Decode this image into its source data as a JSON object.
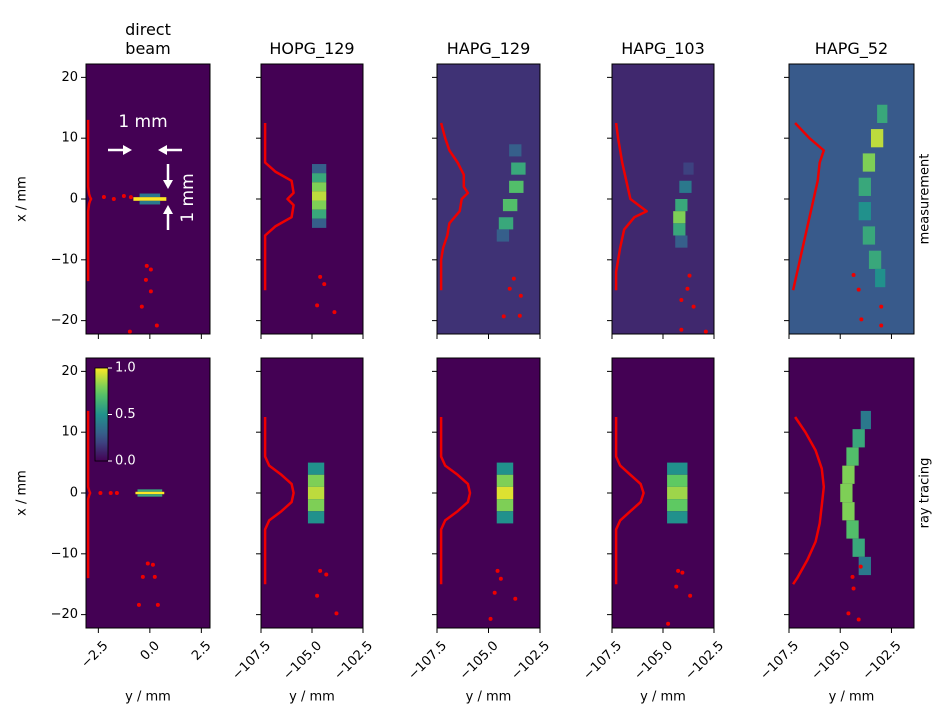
{
  "chart_data": [
    {
      "type": "heatmap",
      "title": "direct beam",
      "ylabel": "x / mm",
      "colormap": "viridis",
      "background": 0,
      "xlim": [
        -3.1,
        2.92
      ],
      "xticks": [
        -2.5,
        0,
        2.5
      ],
      "ylim": [
        -22.2,
        22.2
      ],
      "yticks": [
        {
          "value": -20,
          "label": "−20"
        },
        {
          "value": -10,
          "label": "−10"
        },
        {
          "value": 0,
          "label": "0"
        },
        {
          "value": 10,
          "label": "10"
        },
        {
          "value": 20,
          "label": "20"
        }
      ],
      "annotations": [
        "1 mm",
        "1 mm"
      ],
      "spot": {
        "y": [
          0.6,
          0,
          -0.6
        ],
        "x0": [
          -0.5,
          -0.8,
          -0.5
        ],
        "x1": [
          0.5,
          0.8,
          0.5
        ],
        "values": [
          0.4,
          1,
          0.4
        ]
      },
      "profile": {
        "color": "#ee0000",
        "x": [
          -3.0,
          -3.0,
          -2.95,
          -2.9,
          -2.85,
          -2.9,
          -2.95,
          -3.0,
          -3.0
        ],
        "y": [
          13,
          2,
          0.8,
          0.3,
          0,
          -0.3,
          -0.8,
          -2,
          -13.5
        ]
      },
      "points": {
        "color": "#ee0000",
        "x": [
          -2.23,
          -1.75,
          -1.26,
          -0.92,
          -0.15,
          0.05,
          -0.19,
          0.05,
          -0.39,
          0.34,
          -0.97
        ],
        "y": [
          0.33,
          0,
          0.5,
          0.3,
          -11.0,
          -11.6,
          -13.3,
          -15.2,
          -17.7,
          -20.8,
          -21.8
        ]
      }
    },
    {
      "type": "heatmap",
      "title": "HOPG_129",
      "colormap": "viridis",
      "background": 0,
      "xlim": [
        -107.5,
        -102.5
      ],
      "xticks": [
        -107.5,
        -105,
        -102.5
      ],
      "ylim": [
        -22.2,
        22.2
      ],
      "yticks": [
        -20,
        -10,
        0,
        10,
        20
      ],
      "spot": {
        "y": [
          5,
          3.5,
          2,
          0.5,
          -1,
          -2.5,
          -4
        ],
        "x0": [
          -105.0,
          -105.0,
          -105.0,
          -105.0,
          -105.0,
          -105.0,
          -105.0
        ],
        "x1": [
          -104.3,
          -104.3,
          -104.3,
          -104.3,
          -104.3,
          -104.3,
          -104.3
        ],
        "values": [
          0.3,
          0.6,
          0.8,
          0.9,
          0.8,
          0.6,
          0.3
        ]
      },
      "profile": {
        "color": "#ee0000",
        "x": [
          -107.3,
          -107.3,
          -106.8,
          -106.0,
          -105.9,
          -106.2,
          -105.9,
          -106.0,
          -106.8,
          -107.3,
          -107.3
        ],
        "y": [
          12.5,
          6,
          4.5,
          3,
          1,
          0,
          -1,
          -3,
          -4.5,
          -6,
          -15
        ]
      },
      "points": {
        "color": "#ee0000",
        "x": [
          -104.6,
          -104.4,
          -104.75,
          -103.9
        ],
        "y": [
          -12.8,
          -14.0,
          -17.5,
          -18.6
        ]
      }
    },
    {
      "type": "heatmap",
      "title": "HAPG_129",
      "colormap": "viridis",
      "background": 0.15,
      "xlim": [
        -107.5,
        -102.5
      ],
      "xticks": [
        -107.5,
        -105,
        -102.5
      ],
      "ylim": [
        -22.2,
        22.2
      ],
      "yticks": [
        -20,
        -10,
        0,
        10,
        20
      ],
      "spot": {
        "y": [
          8,
          5,
          2,
          -1,
          -4,
          -6
        ],
        "x0": [
          -104.0,
          -103.9,
          -104.0,
          -104.3,
          -104.5,
          -104.6
        ],
        "x1": [
          -103.4,
          -103.2,
          -103.3,
          -103.6,
          -103.8,
          -104.0
        ],
        "values": [
          0.3,
          0.6,
          0.7,
          0.7,
          0.6,
          0.3
        ]
      },
      "profile": {
        "color": "#ee0000",
        "x": [
          -107.3,
          -107.1,
          -106.9,
          -106.5,
          -106.2,
          -106.2,
          -106.0,
          -106.3,
          -106.4,
          -106.9,
          -107.0,
          -107.2,
          -107.3,
          -107.3
        ],
        "y": [
          12.5,
          10,
          8,
          6,
          4,
          2,
          1,
          0,
          -2,
          -4,
          -6,
          -8,
          -10,
          -15
        ]
      },
      "points": {
        "color": "#ee0000",
        "x": [
          -103.77,
          -103.97,
          -103.43,
          -104.26,
          -103.48
        ],
        "y": [
          -13.1,
          -14.75,
          -15.9,
          -19.3,
          -19.2
        ]
      }
    },
    {
      "type": "heatmap",
      "title": "HAPG_103",
      "colormap": "viridis",
      "background": 0.12,
      "xlim": [
        -107.5,
        -102.5
      ],
      "xticks": [
        -107.5,
        -105,
        -102.5
      ],
      "ylim": [
        -22.2,
        22.2
      ],
      "yticks": [
        -20,
        -10,
        0,
        10,
        20
      ],
      "spot": {
        "y": [
          5,
          2,
          -1,
          -3,
          -5,
          -7
        ],
        "x0": [
          -104.0,
          -104.2,
          -104.4,
          -104.5,
          -104.5,
          -104.4
        ],
        "x1": [
          -103.5,
          -103.6,
          -103.8,
          -103.9,
          -103.9,
          -103.8
        ],
        "values": [
          0.2,
          0.4,
          0.6,
          0.8,
          0.6,
          0.3
        ]
      },
      "profile": {
        "color": "#ee0000",
        "x": [
          -107.3,
          -107.2,
          -107.0,
          -106.8,
          -106.6,
          -106.2,
          -105.8,
          -106.4,
          -106.9,
          -107.1,
          -107.3,
          -107.3
        ],
        "y": [
          12.5,
          10,
          6,
          3,
          0,
          -1,
          -2,
          -3,
          -5,
          -8,
          -12,
          -15
        ]
      },
      "points": {
        "color": "#ee0000",
        "x": [
          -103.7,
          -103.8,
          -104.1,
          -103.5,
          -104.1,
          -102.9
        ],
        "y": [
          -12.6,
          -14.75,
          -16.6,
          -17.7,
          -21.5,
          -21.8
        ]
      }
    },
    {
      "type": "heatmap",
      "title": "HAPG_52",
      "row_label": "measurement",
      "colormap": "viridis",
      "background": 0.28,
      "xlim": [
        -107.5,
        -101.4
      ],
      "xticks": [
        -107.5,
        -105,
        -102.5
      ],
      "ylim": [
        -22.2,
        22.2
      ],
      "yticks": [
        -20,
        -10,
        0,
        10,
        20
      ],
      "spot": {
        "y": [
          14,
          10,
          6,
          2,
          -2,
          -6,
          -10,
          -13
        ],
        "x0": [
          -103.2,
          -103.5,
          -103.9,
          -104.1,
          -104.1,
          -103.9,
          -103.6,
          -103.3
        ],
        "x1": [
          -102.7,
          -102.9,
          -103.3,
          -103.5,
          -103.5,
          -103.3,
          -103.0,
          -102.8
        ],
        "values": [
          0.6,
          0.9,
          0.8,
          0.6,
          0.5,
          0.6,
          0.6,
          0.5
        ]
      },
      "profile": {
        "color": "#ee0000",
        "x": [
          -107.2,
          -106.5,
          -105.8,
          -106.0,
          -106.1,
          -106.3,
          -106.5,
          -106.7,
          -106.9,
          -107.1,
          -107.3
        ],
        "y": [
          12.5,
          10,
          8,
          6,
          3,
          0,
          -3,
          -6,
          -9,
          -12,
          -15
        ]
      },
      "points": {
        "color": "#ee0000",
        "x": [
          -104.35,
          -104.1,
          -103.0,
          -103.97,
          -103.0
        ],
        "y": [
          -12.5,
          -14.9,
          -17.7,
          -19.8,
          -20.8
        ]
      }
    },
    {
      "type": "heatmap",
      "xlabel": "y / mm",
      "ylabel": "x / mm",
      "colormap": "viridis",
      "background": 0,
      "xlim": [
        -3.1,
        2.92
      ],
      "xticks": [
        {
          "value": -2.5,
          "label": "−2.5"
        },
        {
          "value": 0,
          "label": "0.0"
        },
        {
          "value": 2.5,
          "label": "2.5"
        }
      ],
      "ylim": [
        -22.2,
        22.2
      ],
      "yticks": [
        {
          "value": -20,
          "label": "−20"
        },
        {
          "value": -10,
          "label": "−10"
        },
        {
          "value": 0,
          "label": "0"
        },
        {
          "value": 10,
          "label": "10"
        },
        {
          "value": 20,
          "label": "20"
        }
      ],
      "colorbar": {
        "clim": [
          0,
          1
        ],
        "ticks": [
          {
            "value": 0,
            "label": "0.0"
          },
          {
            "value": 0.5,
            "label": "0.5"
          },
          {
            "value": 1,
            "label": "1.0"
          }
        ]
      },
      "spot": {
        "y": [
          0.4,
          0,
          -0.4
        ],
        "x0": [
          -0.6,
          -0.7,
          -0.6
        ],
        "x1": [
          0.6,
          0.7,
          0.6
        ],
        "values": [
          0.6,
          1,
          0.6
        ]
      },
      "profile": {
        "color": "#ee0000",
        "x": [
          -3.0,
          -3.0,
          -2.95,
          -2.9,
          -2.95,
          -3.0,
          -3.0
        ],
        "y": [
          13.5,
          1,
          0.4,
          0,
          -0.4,
          -1,
          -14
        ]
      },
      "points": {
        "color": "#ee0000",
        "x": [
          -2.4,
          -1.9,
          -1.6,
          -0.1,
          0.15,
          -0.34,
          0.24,
          -0.53,
          0.39
        ],
        "y": [
          0,
          0,
          0,
          -11.6,
          -11.8,
          -13.8,
          -13.8,
          -18.4,
          -18.4
        ]
      }
    },
    {
      "type": "heatmap",
      "xlabel": "y / mm",
      "colormap": "viridis",
      "background": 0,
      "xlim": [
        -107.5,
        -102.5
      ],
      "xticks": [
        {
          "value": -107.5,
          "label": "−107.5"
        },
        {
          "value": -105,
          "label": "−105.0"
        },
        {
          "value": -102.5,
          "label": "−102.5"
        }
      ],
      "ylim": [
        -22.2,
        22.2
      ],
      "yticks": [
        -20,
        -10,
        0,
        10,
        20
      ],
      "spot": {
        "y": [
          4,
          2,
          0,
          -2,
          -4
        ],
        "x0": [
          -105.2,
          -105.2,
          -105.2,
          -105.2,
          -105.2
        ],
        "x1": [
          -104.4,
          -104.4,
          -104.4,
          -104.4,
          -104.4
        ],
        "values": [
          0.5,
          0.8,
          0.9,
          0.8,
          0.5
        ]
      },
      "profile": {
        "color": "#ee0000",
        "x": [
          -107.3,
          -107.3,
          -107.1,
          -106.5,
          -106.0,
          -105.9,
          -106.0,
          -106.5,
          -107.1,
          -107.3,
          -107.3
        ],
        "y": [
          12.5,
          6,
          4.5,
          3,
          1.5,
          0,
          -1.5,
          -3,
          -4.5,
          -6,
          -15
        ]
      },
      "points": {
        "color": "#ee0000",
        "x": [
          -104.6,
          -104.3,
          -104.75,
          -103.8
        ],
        "y": [
          -12.8,
          -13.4,
          -16.9,
          -19.8
        ]
      }
    },
    {
      "type": "heatmap",
      "xlabel": "y / mm",
      "colormap": "viridis",
      "background": 0,
      "xlim": [
        -107.5,
        -102.5
      ],
      "xticks": [
        {
          "value": -107.5,
          "label": "−107.5"
        },
        {
          "value": -105,
          "label": "−105.0"
        },
        {
          "value": -102.5,
          "label": "−102.5"
        }
      ],
      "ylim": [
        -22.2,
        22.2
      ],
      "yticks": [
        -20,
        -10,
        0,
        10,
        20
      ],
      "spot": {
        "y": [
          4,
          2,
          0,
          -2,
          -4
        ],
        "x0": [
          -104.6,
          -104.6,
          -104.6,
          -104.6,
          -104.6
        ],
        "x1": [
          -103.8,
          -103.8,
          -103.8,
          -103.8,
          -103.8
        ],
        "values": [
          0.5,
          0.8,
          0.95,
          0.8,
          0.5
        ]
      },
      "profile": {
        "color": "#ee0000",
        "x": [
          -107.3,
          -107.3,
          -107.1,
          -106.5,
          -106.0,
          -105.9,
          -106.0,
          -106.5,
          -107.1,
          -107.3,
          -107.3
        ],
        "y": [
          12.5,
          6,
          4.5,
          3,
          1.5,
          0,
          -1.5,
          -3,
          -4.5,
          -6,
          -15
        ]
      },
      "points": {
        "color": "#ee0000",
        "x": [
          -104.56,
          -104.4,
          -104.7,
          -103.7,
          -104.9
        ],
        "y": [
          -12.8,
          -14.1,
          -16.4,
          -17.4,
          -20.7
        ]
      }
    },
    {
      "type": "heatmap",
      "xlabel": "y / mm",
      "colormap": "viridis",
      "background": 0,
      "xlim": [
        -107.5,
        -102.5
      ],
      "xticks": [
        {
          "value": -107.5,
          "label": "−107.5"
        },
        {
          "value": -105,
          "label": "−105.0"
        },
        {
          "value": -102.5,
          "label": "−102.5"
        }
      ],
      "ylim": [
        -22.2,
        22.2
      ],
      "yticks": [
        -20,
        -10,
        0,
        10,
        20
      ],
      "spot": {
        "y": [
          4,
          2,
          0,
          -2,
          -4
        ],
        "x0": [
          -104.8,
          -104.8,
          -104.8,
          -104.8,
          -104.8
        ],
        "x1": [
          -103.8,
          -103.8,
          -103.8,
          -103.8,
          -103.8
        ],
        "values": [
          0.5,
          0.75,
          0.85,
          0.75,
          0.5
        ]
      },
      "profile": {
        "color": "#ee0000",
        "x": [
          -107.3,
          -107.3,
          -107.1,
          -106.6,
          -106.1,
          -105.95,
          -106.1,
          -106.6,
          -107.1,
          -107.3,
          -107.3
        ],
        "y": [
          12.5,
          6,
          4.5,
          3,
          1.5,
          0,
          -1.5,
          -3,
          -4.5,
          -6,
          -15
        ]
      },
      "points": {
        "color": "#ee0000",
        "x": [
          -104.26,
          -104.05,
          -104.35,
          -103.67,
          -104.75
        ],
        "y": [
          -12.8,
          -13.1,
          -15.4,
          -16.9,
          -21.5
        ]
      }
    },
    {
      "type": "heatmap",
      "xlabel": "y / mm",
      "row_label": "ray tracing",
      "colormap": "viridis",
      "background": 0,
      "xlim": [
        -107.5,
        -101.4
      ],
      "xticks": [
        {
          "value": -107.5,
          "label": "−107.5"
        },
        {
          "value": -105,
          "label": "−105.0"
        },
        {
          "value": -102.5,
          "label": "−102.5"
        }
      ],
      "ylim": [
        -22.2,
        22.2
      ],
      "yticks": [
        -20,
        -10,
        0,
        10,
        20
      ],
      "spot": {
        "y": [
          12,
          9,
          6,
          3,
          0,
          -3,
          -6,
          -9,
          -12
        ],
        "x0": [
          -104.0,
          -104.4,
          -104.7,
          -104.9,
          -105.0,
          -104.9,
          -104.7,
          -104.4,
          -104.1
        ],
        "x1": [
          -103.5,
          -103.8,
          -104.1,
          -104.3,
          -104.4,
          -104.3,
          -104.1,
          -103.8,
          -103.5
        ],
        "values": [
          0.4,
          0.6,
          0.7,
          0.8,
          0.8,
          0.8,
          0.7,
          0.6,
          0.4
        ]
      },
      "profile": {
        "color": "#ee0000",
        "x": [
          -107.2,
          -106.7,
          -106.2,
          -105.9,
          -105.8,
          -105.9,
          -106.0,
          -106.2,
          -106.6,
          -107.1,
          -107.3
        ],
        "y": [
          12.5,
          10,
          7,
          4,
          1,
          -2,
          -5,
          -8,
          -11,
          -14,
          -15
        ]
      },
      "points": {
        "color": "#ee0000",
        "x": [
          -104.4,
          -104.0,
          -104.35,
          -104.6,
          -104.1
        ],
        "y": [
          -13.8,
          -12.1,
          -15.7,
          -19.8,
          -20.8
        ]
      }
    }
  ]
}
